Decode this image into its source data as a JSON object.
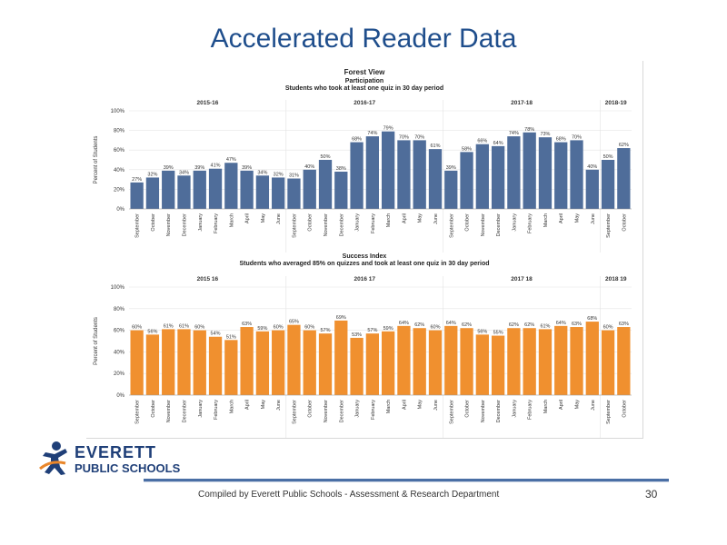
{
  "slide": {
    "title": "Accelerated Reader Data",
    "footer": "Compiled  by Everett Public Schools - Assessment & Research Department",
    "page_number": "30"
  },
  "logo": {
    "line1": "EVERETT",
    "line2": "PUBLIC SCHOOLS"
  },
  "colors": {
    "participation_bar": "#4f6d9a",
    "success_bar": "#f0902f",
    "title_blue": "#1f4e8c"
  },
  "dashboard": {
    "title": "Forest View"
  },
  "chart_data": [
    {
      "type": "bar",
      "title": "Participation",
      "subtitle": "Students who took at least one quiz in 30 day period",
      "ylabel": "Percent of Students",
      "ylim": [
        0,
        100
      ],
      "yticks": [
        "0%",
        "20%",
        "40%",
        "60%",
        "80%",
        "100%"
      ],
      "grid": true,
      "year_groups": [
        {
          "label": "2015-16",
          "count": 10
        },
        {
          "label": "2016-17",
          "count": 10
        },
        {
          "label": "2017-18",
          "count": 10
        },
        {
          "label": "2018-19",
          "count": 2
        }
      ],
      "categories": [
        "September",
        "October",
        "November",
        "December",
        "January",
        "February",
        "March",
        "April",
        "May",
        "June",
        "September",
        "October",
        "November",
        "December",
        "January",
        "February",
        "March",
        "April",
        "May",
        "June",
        "September",
        "October",
        "November",
        "December",
        "January",
        "February",
        "March",
        "April",
        "May",
        "June",
        "September",
        "October"
      ],
      "values": [
        27,
        32,
        39,
        34,
        39,
        41,
        47,
        39,
        34,
        32,
        31,
        40,
        50,
        38,
        68,
        74,
        79,
        70,
        70,
        61,
        39,
        58,
        66,
        64,
        74,
        78,
        73,
        68,
        70,
        40,
        50,
        62
      ]
    },
    {
      "type": "bar",
      "title": "Success Index",
      "subtitle": "Students who averaged 85% on quizzes and took at least one quiz in 30 day period",
      "ylabel": "Percent of Students",
      "ylim": [
        0,
        100
      ],
      "yticks": [
        "0%",
        "20%",
        "40%",
        "60%",
        "80%",
        "100%"
      ],
      "grid": true,
      "year_groups": [
        {
          "label": "2015 16",
          "count": 10
        },
        {
          "label": "2016 17",
          "count": 10
        },
        {
          "label": "2017 18",
          "count": 10
        },
        {
          "label": "2018 19",
          "count": 2
        }
      ],
      "categories": [
        "September",
        "October",
        "November",
        "December",
        "January",
        "February",
        "March",
        "April",
        "May",
        "June",
        "September",
        "October",
        "November",
        "December",
        "January",
        "February",
        "March",
        "April",
        "May",
        "June",
        "September",
        "October",
        "November",
        "December",
        "January",
        "February",
        "March",
        "April",
        "May",
        "June",
        "September",
        "October"
      ],
      "values": [
        60,
        56,
        61,
        61,
        60,
        54,
        51,
        63,
        59,
        60,
        65,
        60,
        57,
        69,
        53,
        57,
        59,
        64,
        62,
        60,
        64,
        62,
        56,
        55,
        62,
        62,
        61,
        64,
        63,
        68,
        60,
        63
      ]
    }
  ]
}
